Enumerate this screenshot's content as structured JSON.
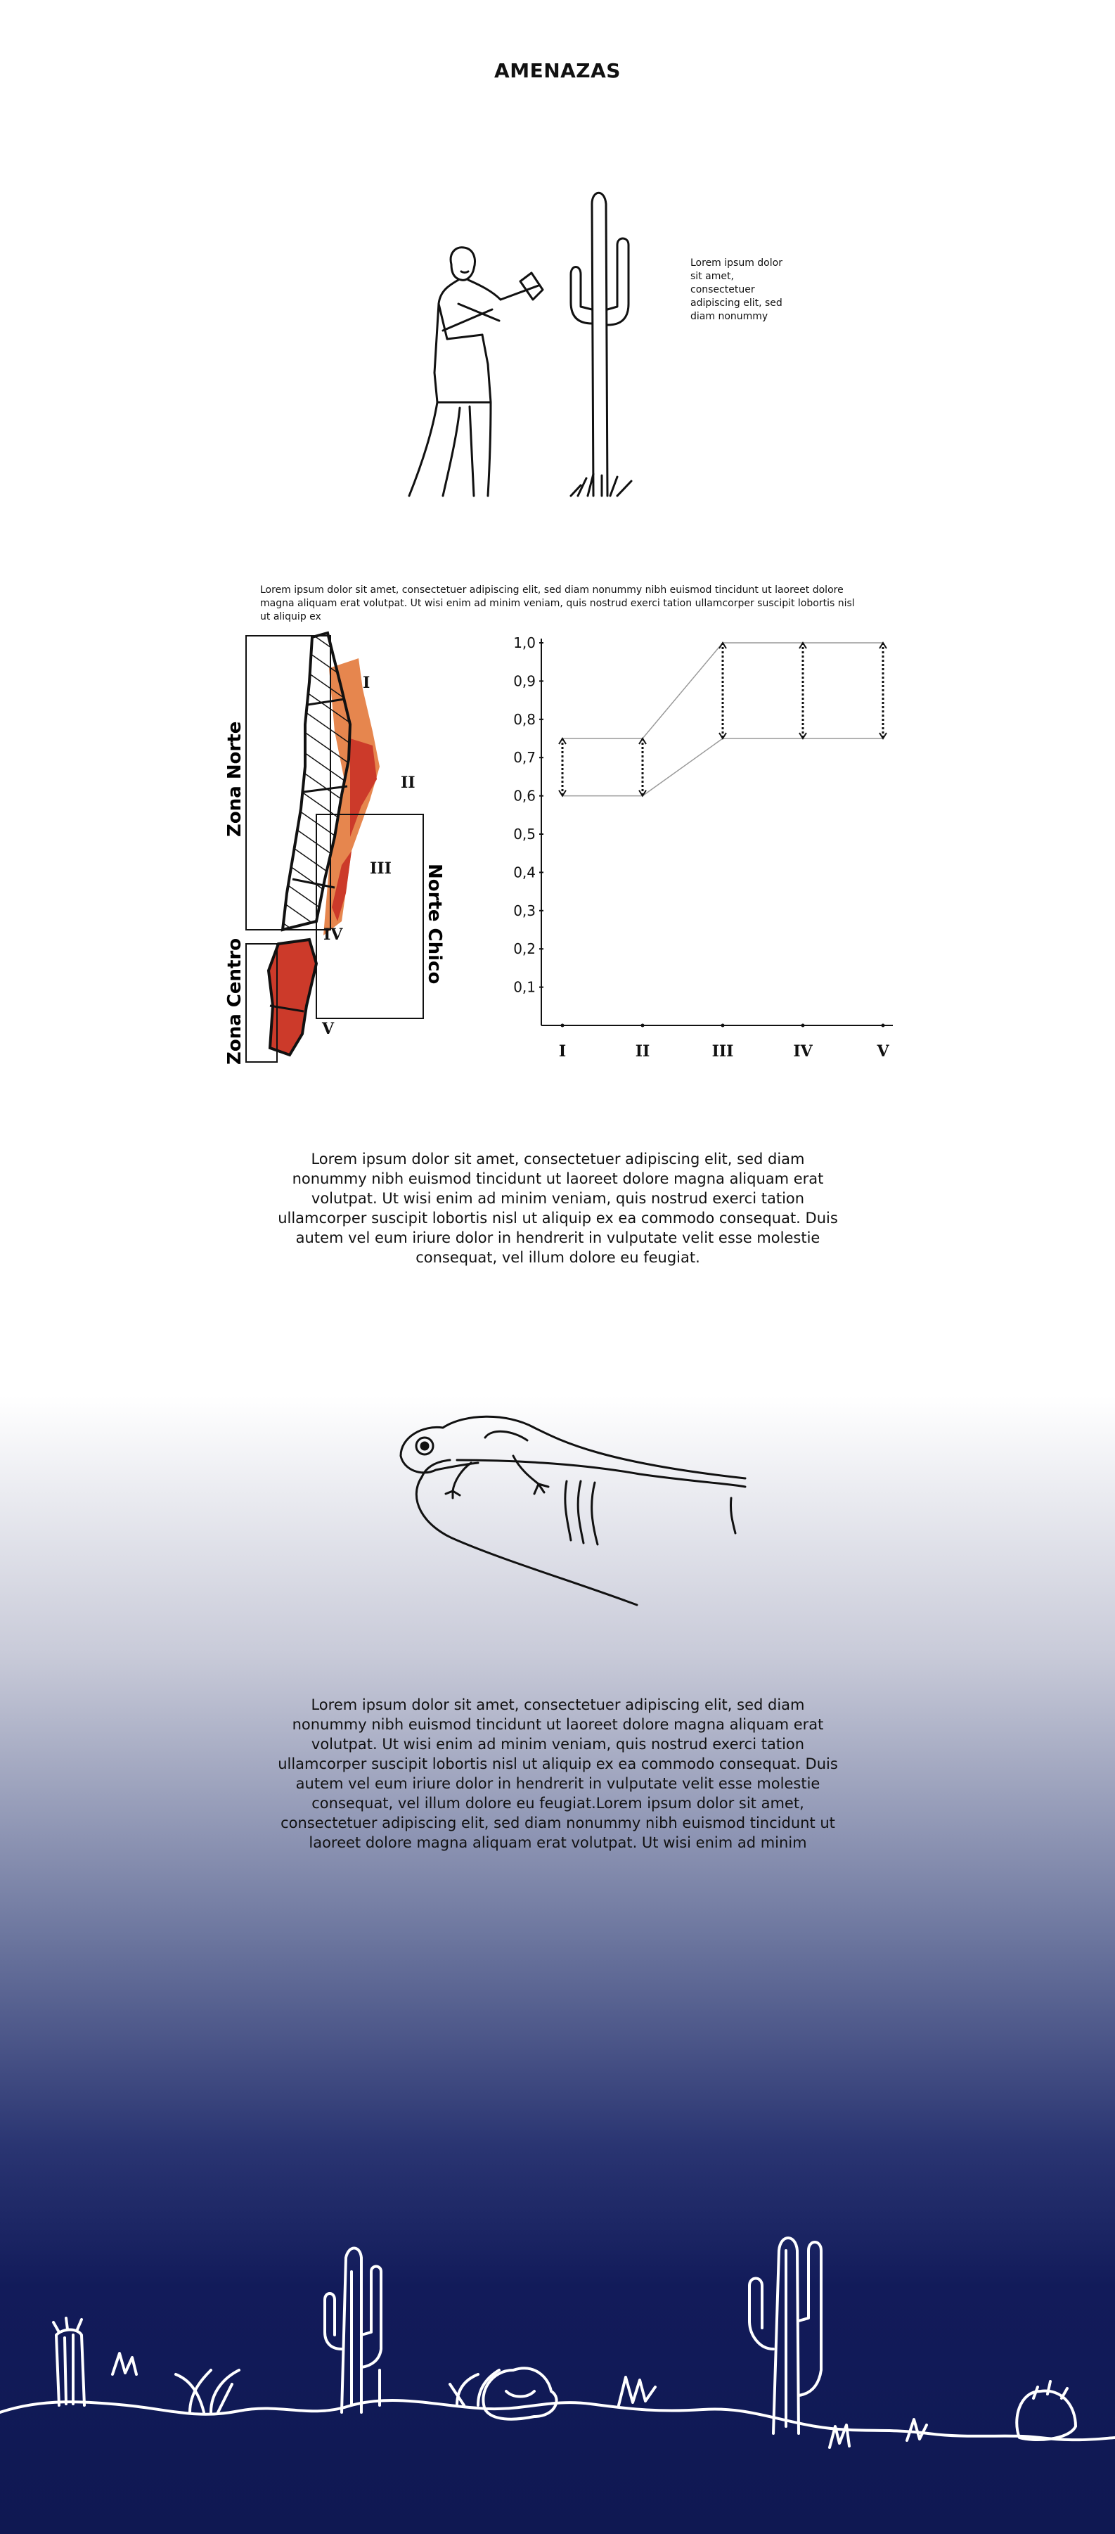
{
  "title": "AMENAZAS",
  "side_note": "Lorem ipsum dolor sit amet, consectetuer adipiscing elit, sed diam nonummy",
  "map_caption": "Lorem ipsum dolor sit amet, consectetuer adipiscing elit, sed diam nonummy nibh euismod tincidunt ut laoreet dolore magna aliquam erat volutpat. Ut wisi enim ad minim veniam, quis nostrud exerci tation ullamcorper suscipit lobortis nisl ut aliquip ex",
  "map": {
    "zones": [
      "Zona Norte",
      "Norte Chico",
      "Zona Centro"
    ],
    "regions": [
      "I",
      "II",
      "III",
      "IV",
      "V"
    ],
    "colors": {
      "hatch": "#111111",
      "threat_dark": "#cc3a2a",
      "threat_light": "#e6864e"
    }
  },
  "chart_data": {
    "type": "range-bar",
    "categories": [
      "I",
      "II",
      "III",
      "IV",
      "V"
    ],
    "ranges": [
      {
        "category": "I",
        "low": 0.6,
        "high": 0.75
      },
      {
        "category": "II",
        "low": 0.6,
        "high": 0.75
      },
      {
        "category": "III",
        "low": 0.75,
        "high": 1.0
      },
      {
        "category": "IV",
        "low": 0.75,
        "high": 1.0
      },
      {
        "category": "V",
        "low": 0.75,
        "high": 1.0
      }
    ],
    "yticks": [
      "0,1",
      "0,2",
      "0,3",
      "0,4",
      "0,5",
      "0,6",
      "0,7",
      "0,8",
      "0,9",
      "1,0"
    ],
    "ylim": [
      0,
      1.0
    ],
    "grid": false
  },
  "paragraph_1": "Lorem ipsum dolor sit amet, consectetuer adipiscing elit, sed diam nonummy nibh euismod tincidunt ut laoreet dolore magna aliquam erat volutpat. Ut wisi enim ad minim veniam, quis nostrud exerci tation ullamcorper suscipit lobortis nisl ut aliquip ex ea commodo consequat. Duis autem vel eum iriure dolor in hendrerit in vulputate velit esse molestie consequat, vel illum dolore eu feugiat.",
  "paragraph_2": "Lorem ipsum dolor sit amet, consectetuer adipiscing elit, sed diam nonummy nibh euismod tincidunt ut laoreet dolore magna aliquam erat volutpat. Ut wisi enim ad minim veniam, quis nostrud exerci tation ullamcorper suscipit lobortis nisl ut aliquip ex ea commodo consequat. Duis autem vel eum iriure dolor in hendrerit in vulputate velit esse molestie consequat, vel illum dolore eu feugiat.Lorem ipsum dolor sit amet, consectetuer adipiscing elit, sed diam nonummy nibh euismod tincidunt ut laoreet dolore magna aliquam erat volutpat. Ut wisi enim ad minim",
  "colors": {
    "background_bottom": "#0f1852",
    "ink": "#111111",
    "landscape": "#ffffff"
  },
  "illustrations": [
    "man-with-axe-illustration",
    "cactus-icon",
    "lizard-on-finger-illustration",
    "desert-landscape-illustration"
  ]
}
